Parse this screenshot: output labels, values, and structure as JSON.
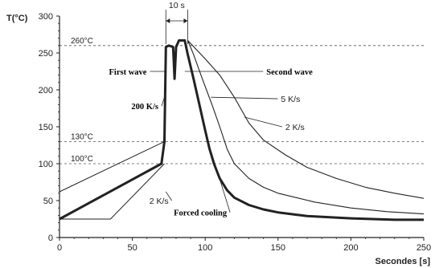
{
  "chart_data": {
    "type": "line",
    "xlabel": "Secondes [s]",
    "ylabel": "T(°C)",
    "xlim": [
      0,
      250
    ],
    "ylim": [
      0,
      300
    ],
    "x_ticks": [
      0,
      50,
      100,
      150,
      200,
      250
    ],
    "y_ticks": [
      0,
      50,
      100,
      150,
      200,
      250,
      300
    ],
    "grid": false,
    "reference_lines": [
      {
        "label": "260°C",
        "y": 260
      },
      {
        "label": "130°C",
        "y": 130
      },
      {
        "label": "100°C",
        "y": 100
      }
    ],
    "duration_marker": {
      "label": "10 s",
      "x": [
        73,
        88
      ]
    },
    "series": [
      {
        "role": "main-profile",
        "points": [
          [
            0,
            25
          ],
          [
            70,
            100
          ],
          [
            72,
            130
          ],
          [
            73,
            258
          ],
          [
            75,
            260
          ],
          [
            78,
            258
          ],
          [
            79,
            215
          ],
          [
            80,
            258
          ],
          [
            82,
            267
          ],
          [
            86,
            267
          ],
          [
            88,
            248
          ],
          [
            92,
            215
          ],
          [
            96,
            180
          ],
          [
            100,
            145
          ],
          [
            103,
            120
          ],
          [
            106,
            100
          ],
          [
            110,
            80
          ],
          [
            115,
            64
          ],
          [
            120,
            54
          ],
          [
            130,
            44
          ],
          [
            140,
            38
          ],
          [
            150,
            34
          ],
          [
            170,
            29
          ],
          [
            200,
            26
          ],
          [
            230,
            24
          ],
          [
            250,
            24
          ]
        ]
      },
      {
        "role": "cooling-5Ks",
        "points": [
          [
            88,
            267
          ],
          [
            92,
            248
          ],
          [
            98,
            215
          ],
          [
            105,
            178
          ],
          [
            110,
            150
          ],
          [
            115,
            120
          ],
          [
            120,
            100
          ],
          [
            130,
            80
          ],
          [
            140,
            68
          ],
          [
            150,
            60
          ],
          [
            175,
            48
          ],
          [
            200,
            40
          ],
          [
            225,
            35
          ],
          [
            250,
            32
          ]
        ]
      },
      {
        "role": "cooling-2Ks",
        "points": [
          [
            88,
            267
          ],
          [
            100,
            242
          ],
          [
            110,
            220
          ],
          [
            120,
            190
          ],
          [
            130,
            155
          ],
          [
            140,
            132
          ],
          [
            155,
            112
          ],
          [
            170,
            95
          ],
          [
            190,
            80
          ],
          [
            210,
            68
          ],
          [
            230,
            60
          ],
          [
            250,
            53
          ]
        ]
      },
      {
        "role": "preheat-upper",
        "points": [
          [
            0,
            62
          ],
          [
            72,
            130
          ]
        ]
      },
      {
        "role": "preheat-lower",
        "points": [
          [
            0,
            25
          ],
          [
            35,
            25
          ],
          [
            72,
            100
          ]
        ]
      }
    ],
    "annotations": [
      {
        "text": "First wave",
        "at": [
          40,
          225
        ],
        "arrow_to": [
          73,
          225
        ]
      },
      {
        "text": "Second wave",
        "at": [
          142,
          225
        ],
        "arrow_to": [
          86,
          225
        ]
      },
      {
        "text": "200 K/s",
        "at": [
          48,
          178
        ],
        "arrow_to": [
          72,
          190
        ]
      },
      {
        "text": "5 K/s",
        "at": [
          152,
          188
        ],
        "arrow_to": [
          104,
          190
        ]
      },
      {
        "text": "2 K/s",
        "at": [
          155,
          150
        ],
        "arrow_to": [
          127,
          163
        ]
      },
      {
        "text": "2 K/s",
        "at": [
          55,
          50
        ],
        "arrow_to": [
          73,
          62
        ]
      },
      {
        "text": "Forced cooling",
        "at": [
          95,
          34
        ],
        "arrow_to": [
          104,
          117
        ]
      }
    ]
  }
}
